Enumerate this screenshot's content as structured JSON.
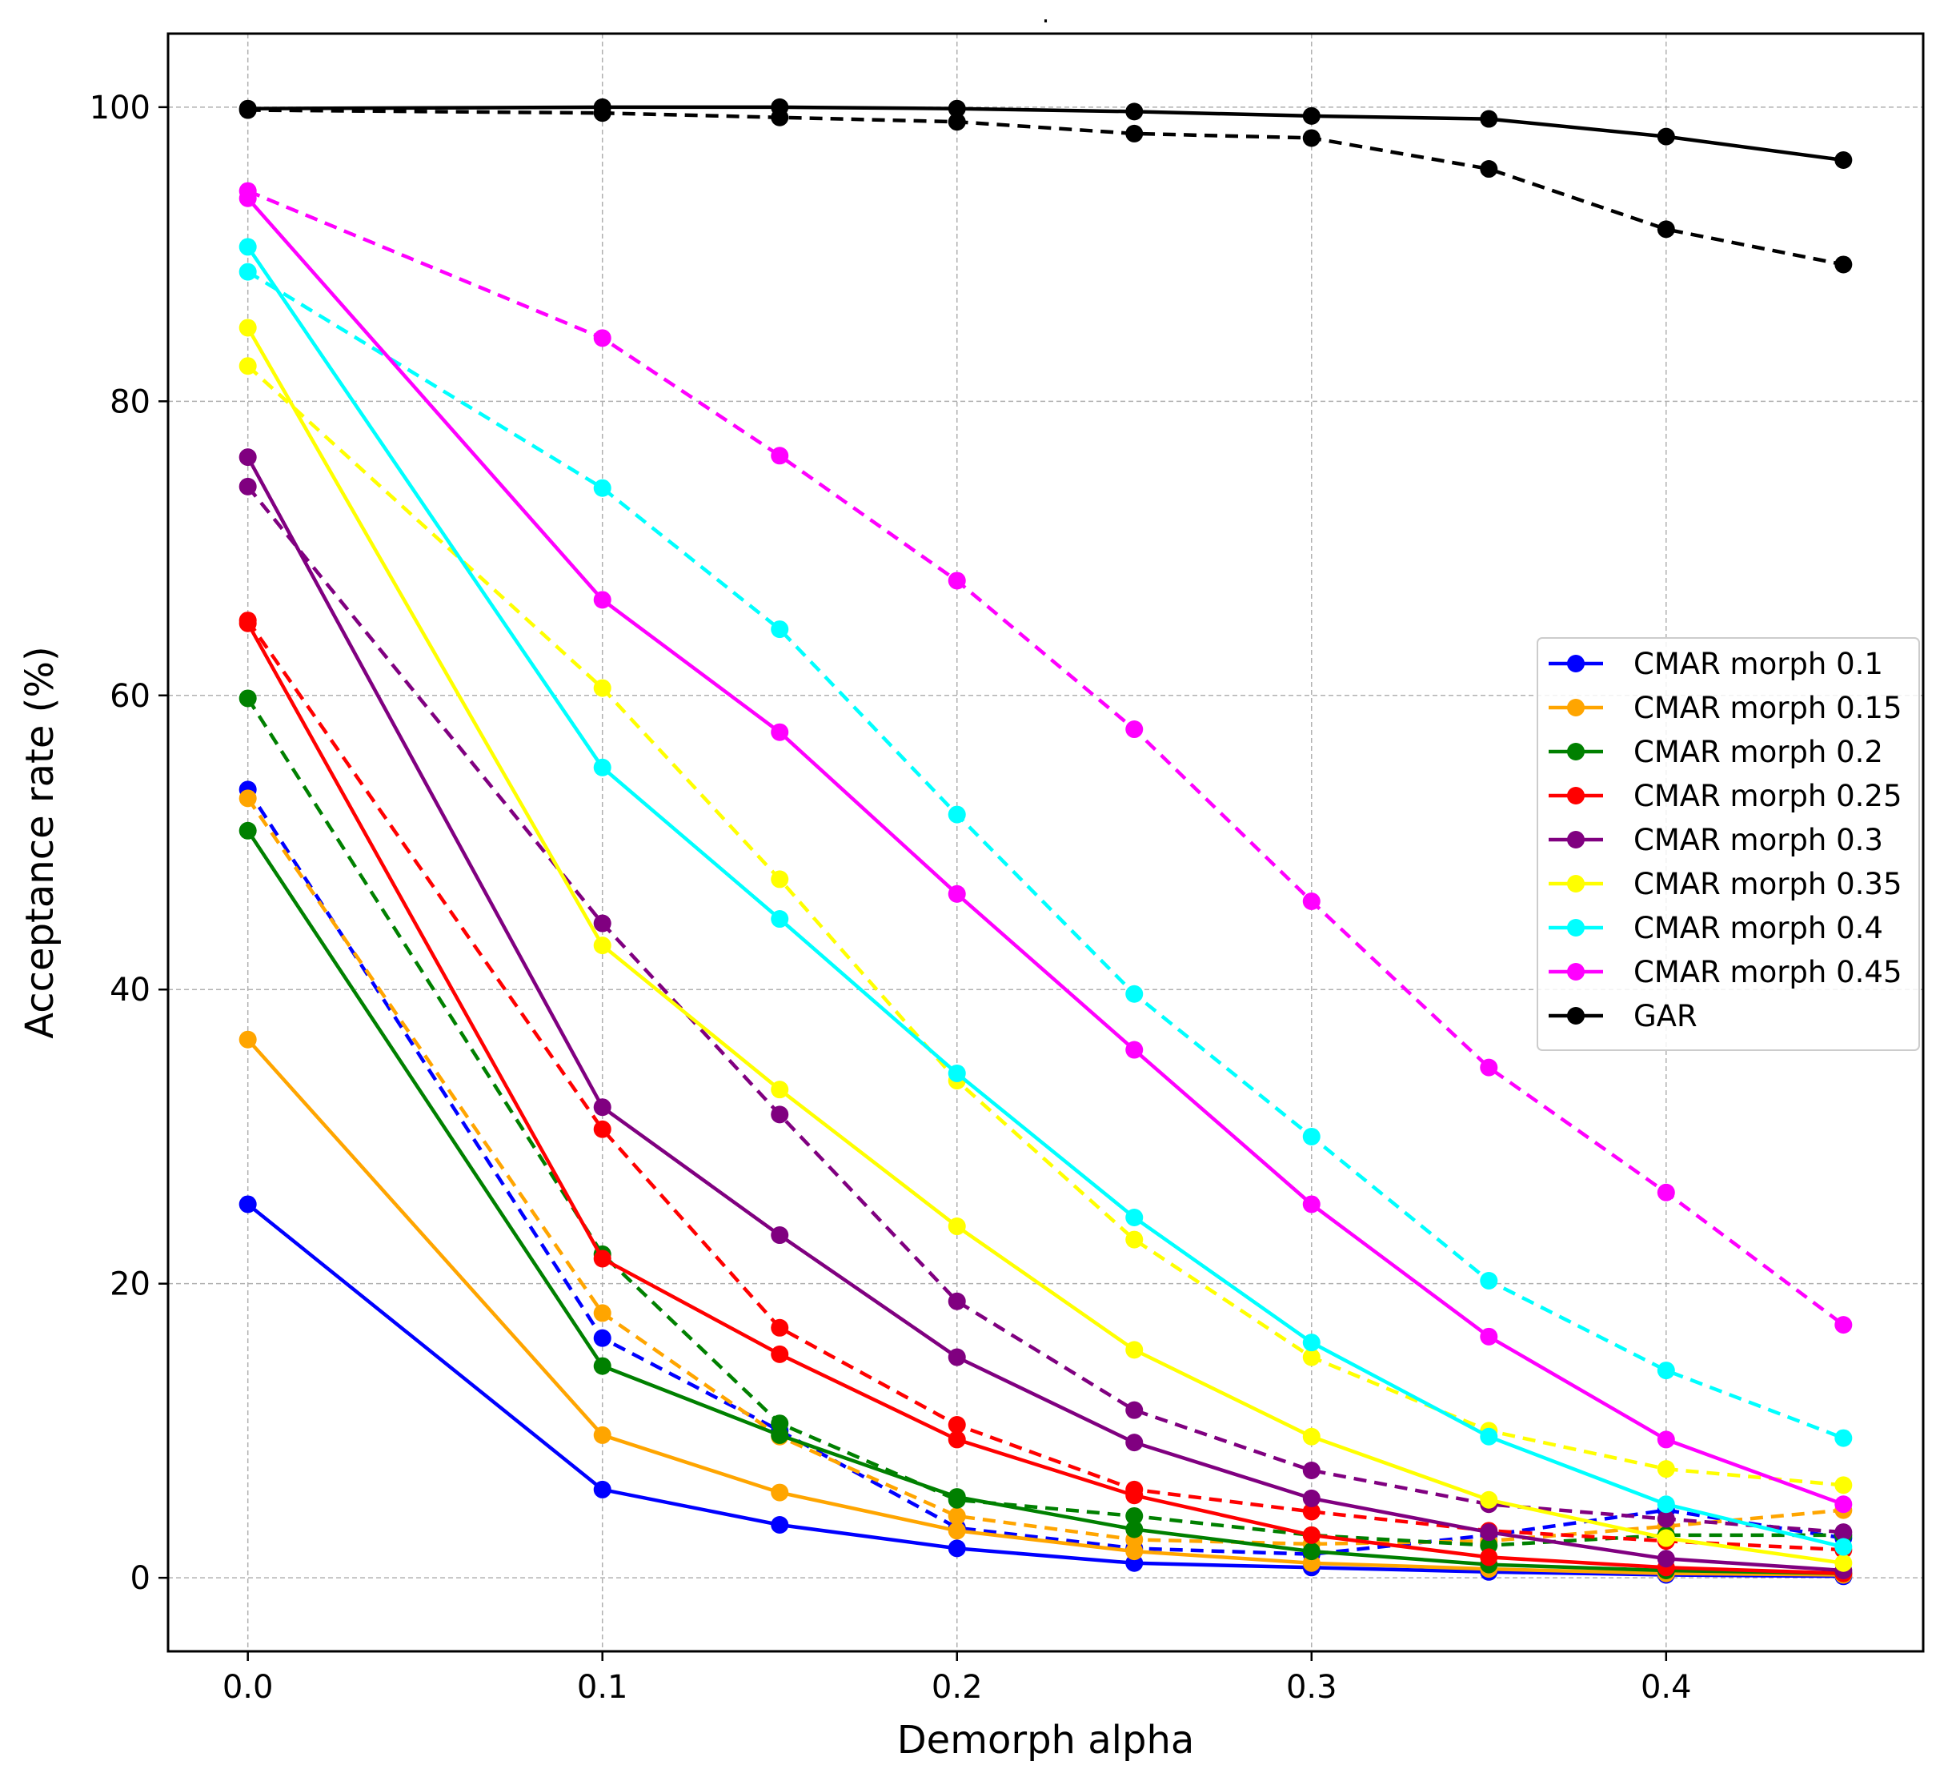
{
  "chart_data": {
    "type": "line",
    "title": ".",
    "xlabel": "Demorph alpha",
    "ylabel": "Acceptance rate (%)",
    "xlim": [
      -0.0225,
      0.4725
    ],
    "ylim": [
      -5,
      105
    ],
    "grid": true,
    "legend_position": "center-right",
    "x": [
      0.0,
      0.1,
      0.15,
      0.2,
      0.25,
      0.3,
      0.35,
      0.4,
      0.45
    ],
    "x_ticks": [
      0.0,
      0.1,
      0.2,
      0.3,
      0.4
    ],
    "x_tick_labels": [
      "0.0",
      "0.1",
      "0.2",
      "0.3",
      "0.4"
    ],
    "y_ticks": [
      0,
      20,
      40,
      60,
      80,
      100
    ],
    "y_tick_labels": [
      "0",
      "20",
      "40",
      "60",
      "80",
      "100"
    ],
    "series": [
      {
        "name": "CMAR morph 0.1",
        "color": "#0000ff",
        "style": "solid",
        "in_legend": true,
        "values": [
          25.4,
          6.0,
          3.6,
          2.0,
          1.0,
          0.7,
          0.4,
          0.2,
          0.1
        ]
      },
      {
        "name": "CMAR morph 0.1",
        "color": "#0000ff",
        "style": "dashed",
        "in_legend": false,
        "values": [
          53.6,
          16.3,
          10.0,
          3.4,
          2.0,
          1.6,
          2.9,
          4.6,
          2.7
        ]
      },
      {
        "name": "CMAR morph 0.15",
        "color": "#ffa500",
        "style": "solid",
        "in_legend": true,
        "values": [
          36.6,
          9.7,
          5.8,
          3.2,
          1.8,
          1.0,
          0.6,
          0.3,
          0.2
        ]
      },
      {
        "name": "CMAR morph 0.15",
        "color": "#ffa500",
        "style": "dashed",
        "in_legend": false,
        "values": [
          53.0,
          18.0,
          9.6,
          4.2,
          2.6,
          2.3,
          2.5,
          3.5,
          4.6
        ]
      },
      {
        "name": "CMAR morph 0.2",
        "color": "#008000",
        "style": "solid",
        "in_legend": true,
        "values": [
          50.8,
          14.4,
          9.7,
          5.5,
          3.3,
          1.8,
          0.9,
          0.5,
          0.3
        ]
      },
      {
        "name": "CMAR morph 0.2",
        "color": "#008000",
        "style": "dashed",
        "in_legend": false,
        "values": [
          59.8,
          22.0,
          10.5,
          5.3,
          4.2,
          2.9,
          2.2,
          2.9,
          2.9
        ]
      },
      {
        "name": "CMAR morph 0.25",
        "color": "#ff0000",
        "style": "solid",
        "in_legend": true,
        "values": [
          64.9,
          21.7,
          15.2,
          9.4,
          5.6,
          2.9,
          1.4,
          0.7,
          0.3
        ]
      },
      {
        "name": "CMAR morph 0.25",
        "color": "#ff0000",
        "style": "dashed",
        "in_legend": false,
        "values": [
          65.1,
          30.5,
          17.0,
          10.4,
          6.0,
          4.5,
          3.2,
          2.5,
          1.9
        ]
      },
      {
        "name": "CMAR morph 0.3",
        "color": "#800080",
        "style": "solid",
        "in_legend": true,
        "values": [
          76.2,
          32.0,
          23.3,
          15.0,
          9.2,
          5.4,
          3.1,
          1.3,
          0.5
        ]
      },
      {
        "name": "CMAR morph 0.3",
        "color": "#800080",
        "style": "dashed",
        "in_legend": false,
        "values": [
          74.2,
          44.5,
          31.5,
          18.8,
          11.4,
          7.3,
          5.0,
          4.0,
          3.1
        ]
      },
      {
        "name": "CMAR morph 0.35",
        "color": "#ffff00",
        "style": "solid",
        "in_legend": true,
        "values": [
          85.0,
          43.0,
          33.2,
          23.9,
          15.5,
          9.6,
          5.3,
          2.7,
          1.0
        ]
      },
      {
        "name": "CMAR morph 0.35",
        "color": "#ffff00",
        "style": "dashed",
        "in_legend": false,
        "values": [
          82.4,
          60.5,
          47.5,
          33.8,
          23.0,
          15.0,
          10.0,
          7.4,
          6.3
        ]
      },
      {
        "name": "CMAR morph 0.4",
        "color": "#00ffff",
        "style": "solid",
        "in_legend": true,
        "values": [
          90.5,
          55.1,
          44.8,
          34.3,
          24.5,
          16.0,
          9.6,
          5.0,
          2.1
        ]
      },
      {
        "name": "CMAR morph 0.4",
        "color": "#00ffff",
        "style": "dashed",
        "in_legend": false,
        "values": [
          88.8,
          74.1,
          64.5,
          51.9,
          39.7,
          30.0,
          20.2,
          14.1,
          9.5
        ]
      },
      {
        "name": "CMAR morph 0.45",
        "color": "#ff00ff",
        "style": "solid",
        "in_legend": true,
        "values": [
          93.8,
          66.5,
          57.5,
          46.5,
          35.9,
          25.4,
          16.4,
          9.4,
          5.0
        ]
      },
      {
        "name": "CMAR morph 0.45",
        "color": "#ff00ff",
        "style": "dashed",
        "in_legend": false,
        "values": [
          94.3,
          84.3,
          76.3,
          67.8,
          57.7,
          46.0,
          34.7,
          26.2,
          17.2
        ]
      },
      {
        "name": "GAR",
        "color": "#000000",
        "style": "solid",
        "in_legend": true,
        "values": [
          99.9,
          100.0,
          100.0,
          99.9,
          99.7,
          99.4,
          99.2,
          98.0,
          96.4
        ]
      },
      {
        "name": "GAR",
        "color": "#000000",
        "style": "dashed",
        "in_legend": false,
        "values": [
          99.8,
          99.6,
          99.3,
          99.0,
          98.2,
          97.9,
          95.8,
          91.7,
          89.3
        ]
      }
    ]
  }
}
